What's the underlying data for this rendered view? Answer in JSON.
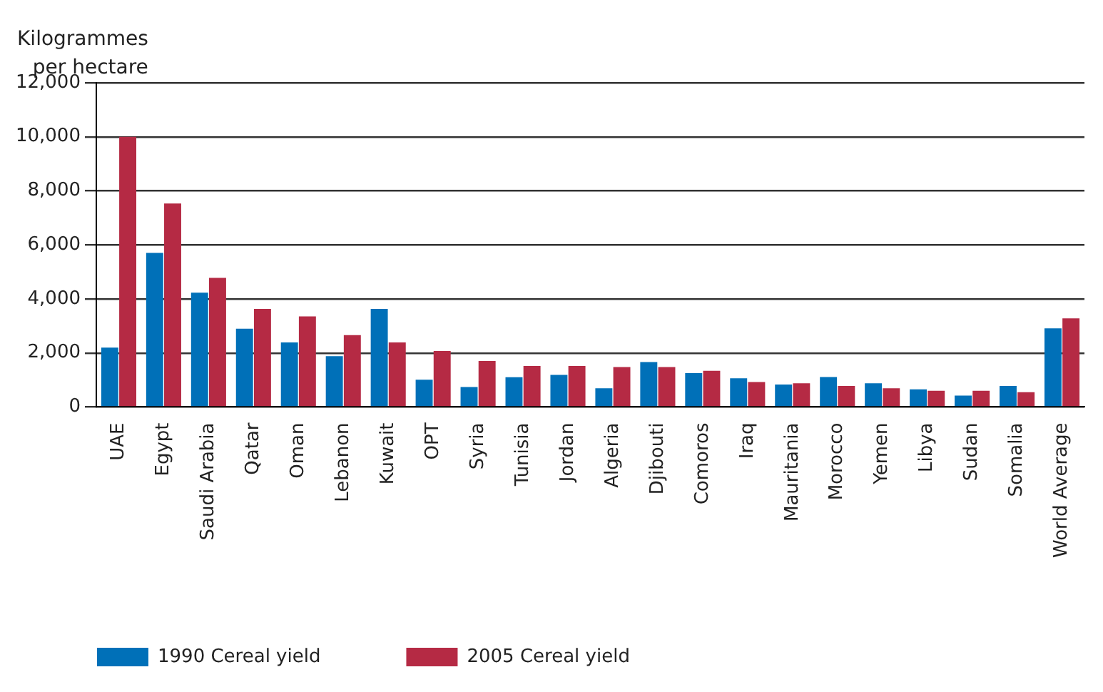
{
  "chart_data": {
    "type": "bar",
    "ylabel": "Kilogrammes per hectare",
    "categories": [
      "UAE",
      "Egypt",
      "Saudi Arabia",
      "Qatar",
      "Oman",
      "Lebanon",
      "Kuwait",
      "OPT",
      "Syria",
      "Tunisia",
      "Jordan",
      "Algeria",
      "Djibouti",
      "Comoros",
      "Iraq",
      "Mauritania",
      "Morocco",
      "Yemen",
      "Libya",
      "Sudan",
      "Somalia",
      "World Average"
    ],
    "series": [
      {
        "name": "1990 Cereal yield",
        "color": "#0070b8",
        "values": [
          2200,
          5700,
          4230,
          2900,
          2390,
          1880,
          3630,
          1010,
          740,
          1100,
          1190,
          690,
          1660,
          1250,
          1060,
          830,
          1110,
          880,
          650,
          420,
          780,
          2910
        ]
      },
      {
        "name": "2005 Cereal yield",
        "color": "#b52a44",
        "values": [
          10000,
          7530,
          4780,
          3630,
          3350,
          2660,
          2390,
          2070,
          1700,
          1520,
          1520,
          1480,
          1480,
          1340,
          920,
          880,
          780,
          690,
          600,
          600,
          550,
          3280
        ]
      }
    ],
    "ylim": [
      0,
      12000
    ],
    "yticks": [
      {
        "value": 0,
        "label": "0"
      },
      {
        "value": 2000,
        "label": "2,000"
      },
      {
        "value": 4000,
        "label": "4,000"
      },
      {
        "value": 6000,
        "label": "6,000"
      },
      {
        "value": 8000,
        "label": "8,000"
      },
      {
        "value": 10000,
        "label": "10,000"
      },
      {
        "value": 12000,
        "label": "12,000"
      }
    ],
    "grid": "y",
    "legend": "bottom"
  }
}
